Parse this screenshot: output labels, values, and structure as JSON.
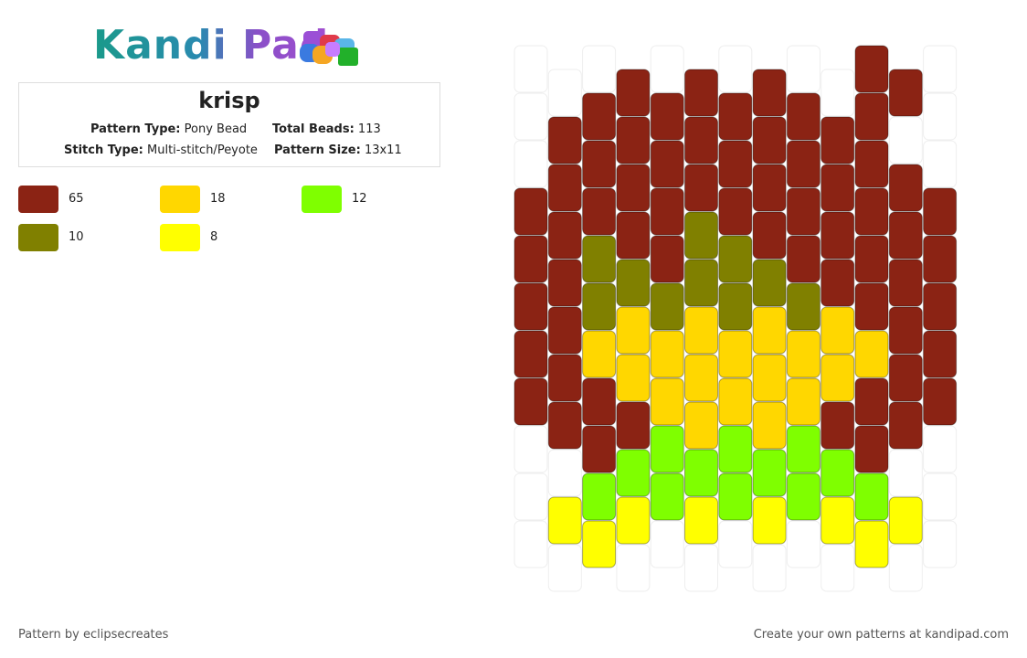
{
  "header": {
    "logo": "Kandi Pad"
  },
  "pattern": {
    "title": "krisp",
    "info": [
      {
        "label": "Pattern Type:",
        "value": "Pony Bead"
      },
      {
        "label": "Total Beads:",
        "value": "113"
      },
      {
        "label": "Stitch Type:",
        "value": "Multi-stitch/Peyote"
      },
      {
        "label": "Pattern Size:",
        "value": "13x11"
      }
    ]
  },
  "legend": [
    {
      "color": "#8b2314",
      "count": "65"
    },
    {
      "color": "#ffd700",
      "count": "18"
    },
    {
      "color": "#7fff00",
      "count": "12"
    },
    {
      "color": "#808000",
      "count": "10"
    },
    {
      "color": "#ffff00",
      "count": "8"
    }
  ],
  "beads": {
    "empty_color": "#ffffff",
    "columns": [
      [
        "#ffffff",
        "#ffffff",
        "#ffffff",
        "#8b2314",
        "#8b2314",
        "#8b2314",
        "#8b2314",
        "#8b2314",
        "#ffffff",
        "#ffffff",
        "#ffffff"
      ],
      [
        "#ffffff",
        "#8b2314",
        "#8b2314",
        "#8b2314",
        "#8b2314",
        "#8b2314",
        "#8b2314",
        "#8b2314",
        "#ffffff",
        "#ffff00",
        "#ffffff"
      ],
      [
        "#ffffff",
        "#8b2314",
        "#8b2314",
        "#8b2314",
        "#808000",
        "#808000",
        "#ffd700",
        "#8b2314",
        "#8b2314",
        "#7fff00",
        "#ffff00"
      ],
      [
        "#8b2314",
        "#8b2314",
        "#8b2314",
        "#8b2314",
        "#808000",
        "#ffd700",
        "#ffd700",
        "#8b2314",
        "#7fff00",
        "#ffff00",
        "#ffffff"
      ],
      [
        "#ffffff",
        "#8b2314",
        "#8b2314",
        "#8b2314",
        "#8b2314",
        "#808000",
        "#ffd700",
        "#ffd700",
        "#7fff00",
        "#7fff00",
        "#ffffff"
      ],
      [
        "#8b2314",
        "#8b2314",
        "#8b2314",
        "#808000",
        "#808000",
        "#ffd700",
        "#ffd700",
        "#ffd700",
        "#7fff00",
        "#ffff00",
        "#ffffff"
      ],
      [
        "#ffffff",
        "#8b2314",
        "#8b2314",
        "#8b2314",
        "#808000",
        "#808000",
        "#ffd700",
        "#ffd700",
        "#7fff00",
        "#7fff00",
        "#ffffff"
      ],
      [
        "#8b2314",
        "#8b2314",
        "#8b2314",
        "#8b2314",
        "#808000",
        "#ffd700",
        "#ffd700",
        "#ffd700",
        "#7fff00",
        "#ffff00",
        "#ffffff"
      ],
      [
        "#ffffff",
        "#8b2314",
        "#8b2314",
        "#8b2314",
        "#8b2314",
        "#808000",
        "#ffd700",
        "#ffd700",
        "#7fff00",
        "#7fff00",
        "#ffffff"
      ],
      [
        "#ffffff",
        "#8b2314",
        "#8b2314",
        "#8b2314",
        "#8b2314",
        "#ffd700",
        "#ffd700",
        "#8b2314",
        "#7fff00",
        "#ffff00",
        "#ffffff"
      ],
      [
        "#8b2314",
        "#8b2314",
        "#8b2314",
        "#8b2314",
        "#8b2314",
        "#8b2314",
        "#ffd700",
        "#8b2314",
        "#8b2314",
        "#7fff00",
        "#ffff00"
      ],
      [
        "#8b2314",
        "#ffffff",
        "#8b2314",
        "#8b2314",
        "#8b2314",
        "#8b2314",
        "#8b2314",
        "#8b2314",
        "#ffffff",
        "#ffff00",
        "#ffffff"
      ],
      [
        "#ffffff",
        "#ffffff",
        "#ffffff",
        "#8b2314",
        "#8b2314",
        "#8b2314",
        "#8b2314",
        "#8b2314",
        "#ffffff",
        "#ffffff",
        "#ffffff"
      ]
    ]
  },
  "footer": {
    "credit": "Pattern by eclipsecreates",
    "promo": "Create your own patterns at kandipad.com"
  }
}
